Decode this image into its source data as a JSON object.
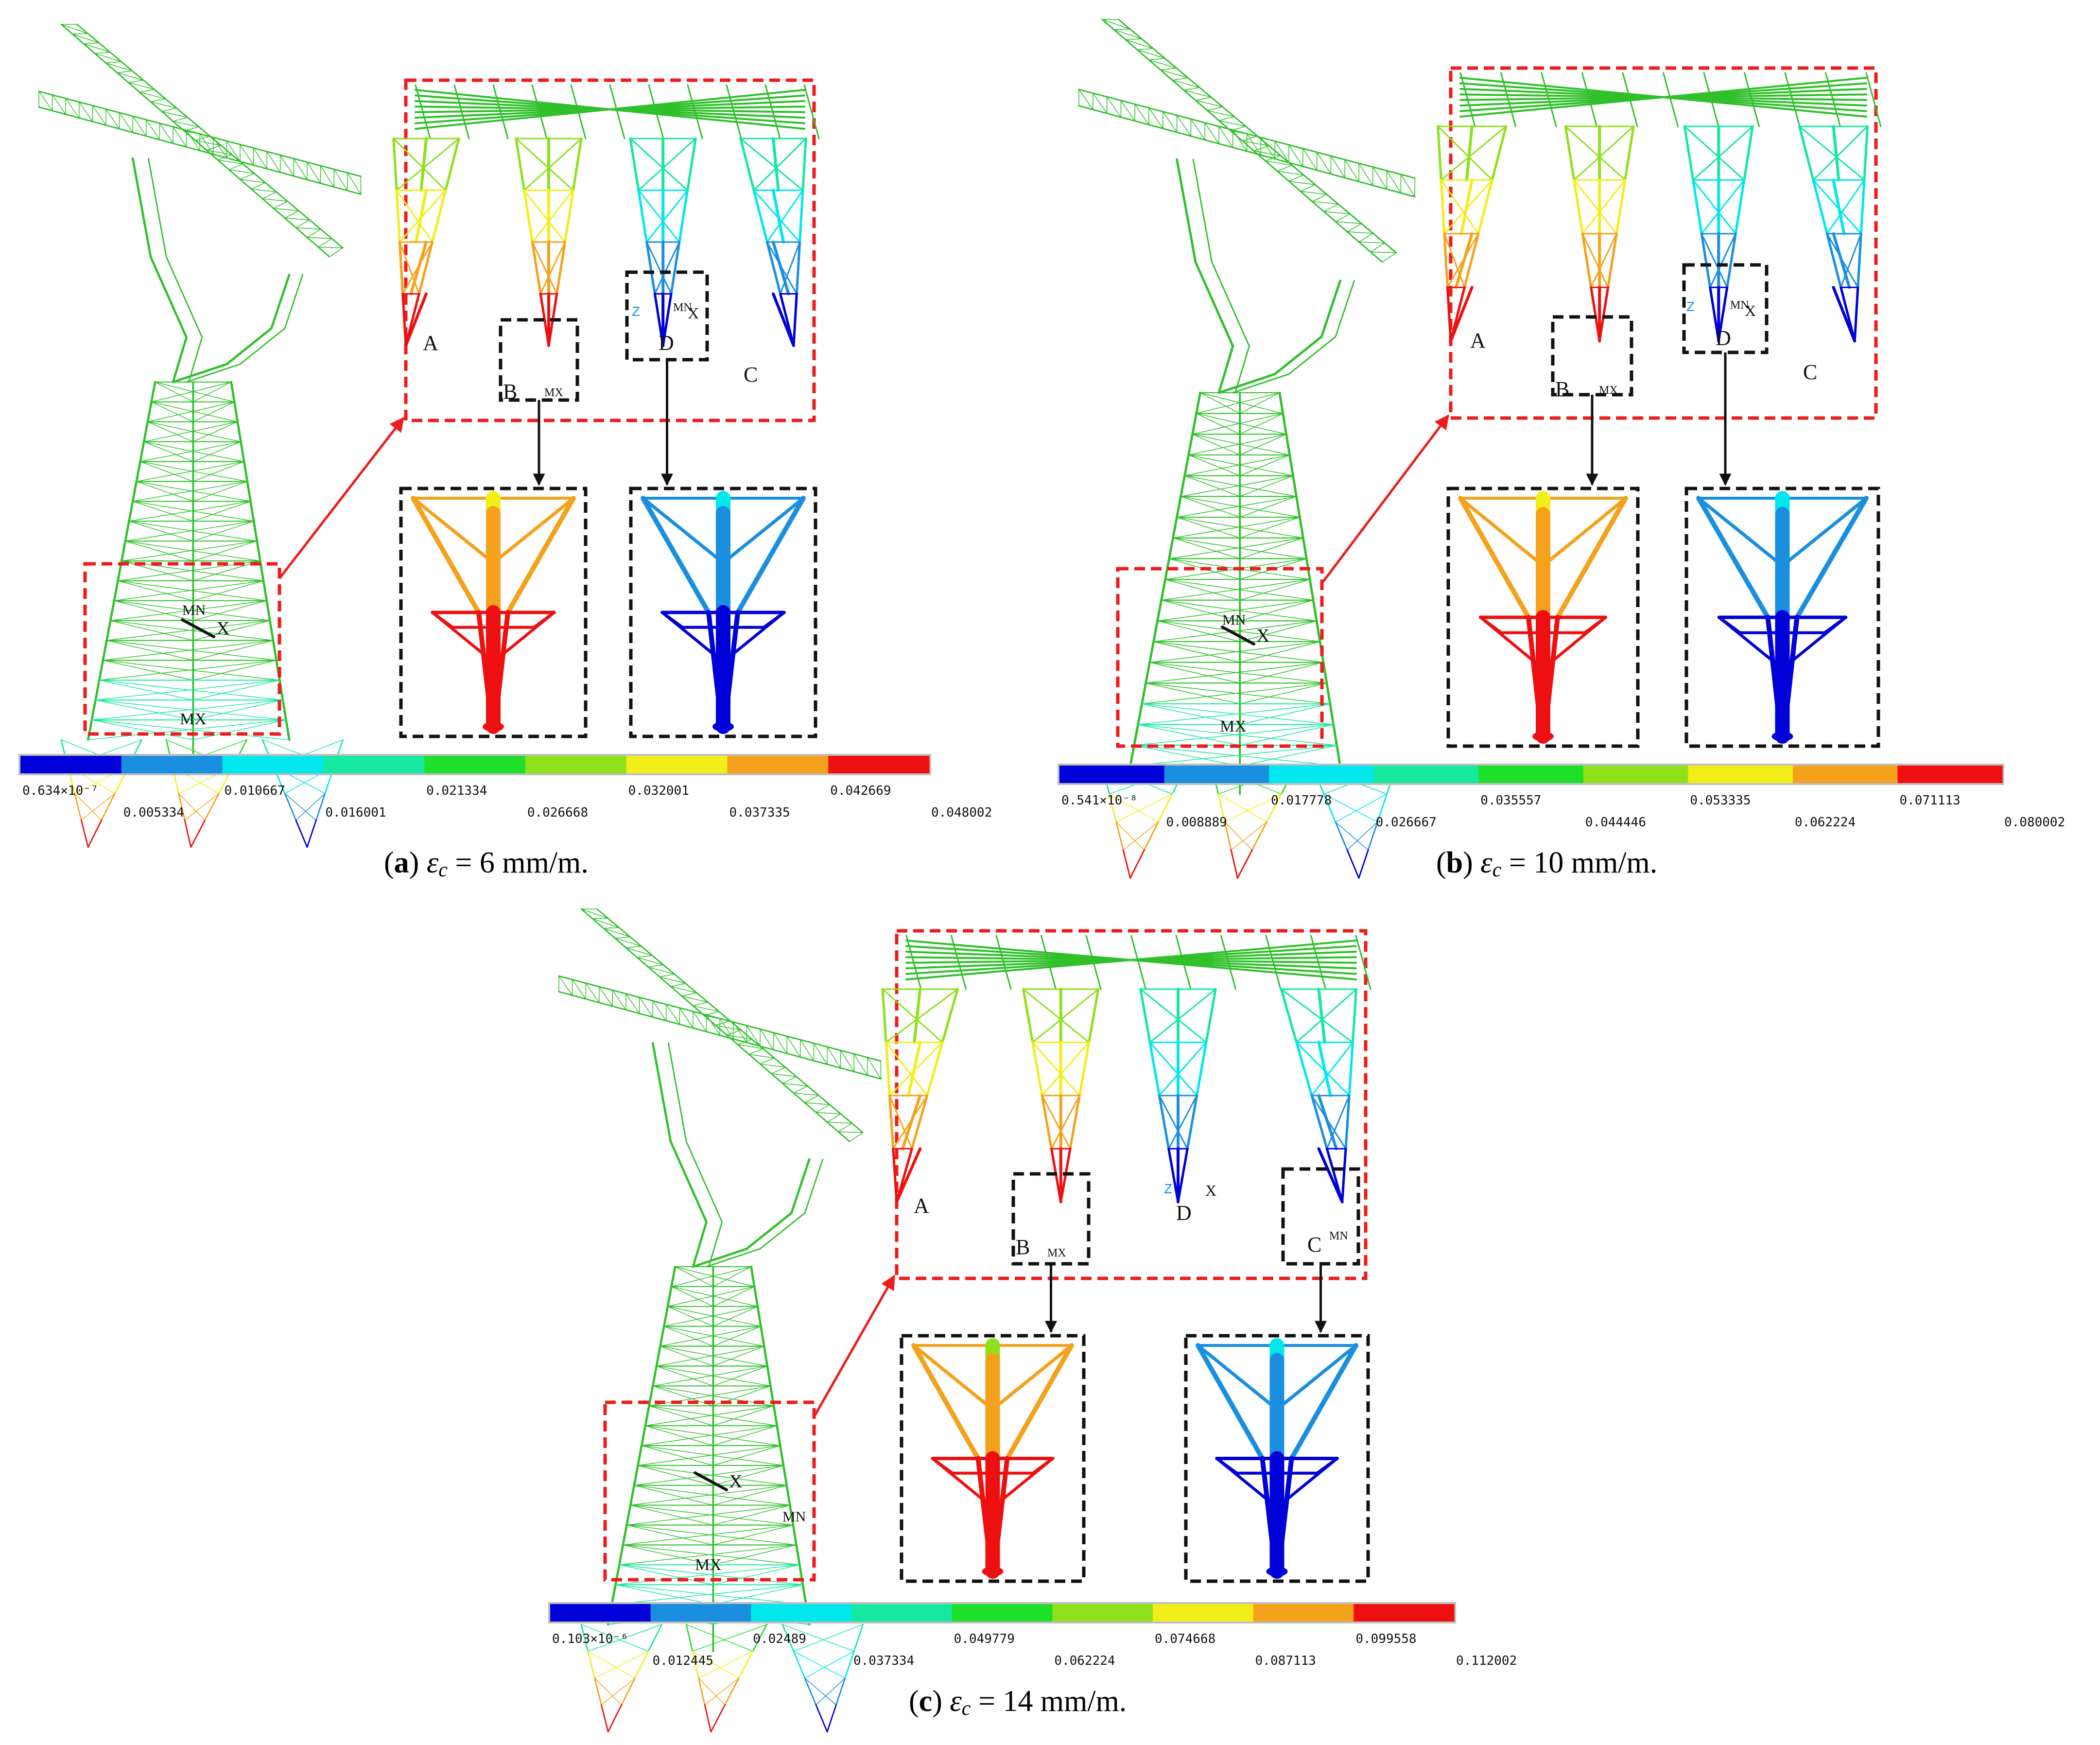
{
  "colormap": [
    "#0000d8",
    "#1a8fe0",
    "#00e8ee",
    "#16e8a0",
    "#1ee02a",
    "#8ee11b",
    "#f2ee1a",
    "#f4a21c",
    "#ee1010"
  ],
  "tower_color": "#2fc02a",
  "highlight_box_color": "#ee1c1c",
  "detail_box_color": "#111111",
  "panels": [
    {
      "id": "a",
      "caption": {
        "letter": "a",
        "symbol": "ε",
        "sub": "c",
        "text": " = 6 mm/m."
      },
      "corner_labels": {
        "A": "A",
        "B": "B",
        "C": "C",
        "D": "D"
      },
      "node_labels": {
        "mx": "MX",
        "mn": "MN",
        "x": "X",
        "z": "Z"
      },
      "legend": {
        "top": [
          "0.634×10⁻⁷",
          "0.010667",
          "0.021334",
          "0.032001",
          "0.042669"
        ],
        "bottom": [
          "0.005334",
          "0.016001",
          "0.026668",
          "0.037335",
          "0.048002"
        ]
      }
    },
    {
      "id": "b",
      "caption": {
        "letter": "b",
        "symbol": "ε",
        "sub": "c",
        "text": " = 10 mm/m."
      },
      "corner_labels": {
        "A": "A",
        "B": "B",
        "C": "C",
        "D": "D"
      },
      "node_labels": {
        "mx": "MX",
        "mn": "MN",
        "x": "X",
        "z": "Z"
      },
      "legend": {
        "top": [
          "0.541×10⁻⁸",
          "0.017778",
          "0.035557",
          "0.053335",
          "0.071113"
        ],
        "bottom": [
          "0.008889",
          "0.026667",
          "0.044446",
          "0.062224",
          "0.080002"
        ]
      }
    },
    {
      "id": "c",
      "caption": {
        "letter": "c",
        "symbol": "ε",
        "sub": "c",
        "text": " = 14 mm/m."
      },
      "corner_labels": {
        "A": "A",
        "B": "B",
        "C": "C",
        "D": "D"
      },
      "node_labels": {
        "mx": "MX",
        "mn": "MN",
        "x": "X",
        "z": "Z"
      },
      "legend": {
        "top": [
          "0.103×10⁻⁶",
          "0.02489",
          "0.049779",
          "0.074668",
          "0.099558"
        ],
        "bottom": [
          "0.012445",
          "0.037334",
          "0.062224",
          "0.087113",
          "0.112002"
        ]
      }
    }
  ]
}
